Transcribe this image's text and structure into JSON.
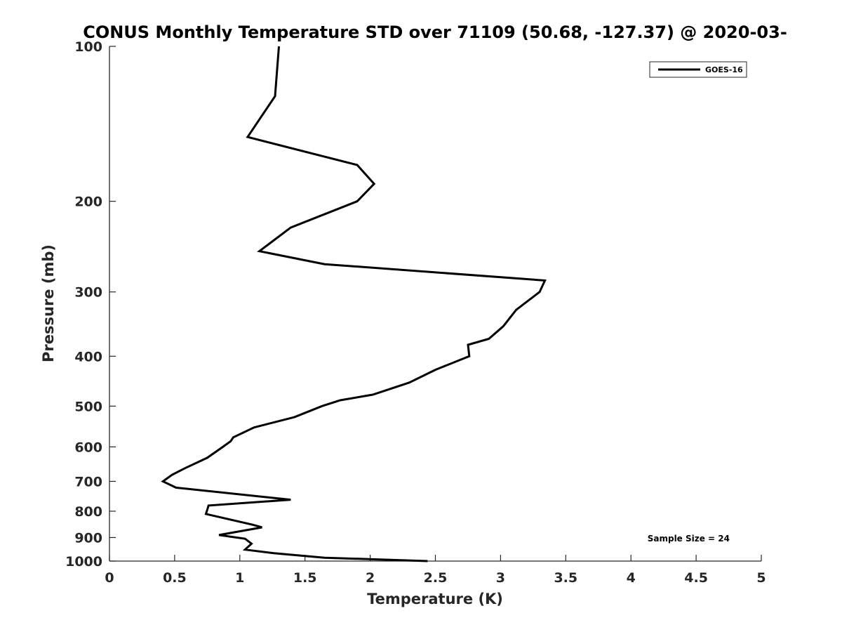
{
  "chart_data": {
    "type": "line",
    "title": "CONUS Monthly Temperature STD over 71109 (50.68, -127.37) @ 2020-03-",
    "xlabel": "Temperature (K)",
    "ylabel": "Pressure (mb)",
    "xlim": [
      0,
      5
    ],
    "ylim": [
      1000,
      100
    ],
    "y_scale": "log",
    "x_ticks": [
      "0",
      "0.5",
      "1",
      "1.5",
      "2",
      "2.5",
      "3",
      "3.5",
      "4",
      "4.5",
      "5"
    ],
    "y_ticks": [
      "100",
      "200",
      "300",
      "400",
      "500",
      "600",
      "700",
      "800",
      "900",
      "1000"
    ],
    "grid": false,
    "legend": {
      "position": "top-right",
      "entries": [
        "GOES-16"
      ]
    },
    "annotation": "Sample Size = 24",
    "series": [
      {
        "name": "GOES-16",
        "color": "#000000",
        "x": [
          1.3,
          1.27,
          1.06,
          1.9,
          2.03,
          1.9,
          1.39,
          1.15,
          1.65,
          3.34,
          3.3,
          3.12,
          3.02,
          2.91,
          2.75,
          2.76,
          2.5,
          2.3,
          2.02,
          1.77,
          1.63,
          1.42,
          1.11,
          0.95,
          0.93,
          0.87,
          0.75,
          0.58,
          0.48,
          0.41,
          0.51,
          1.39,
          0.76,
          0.74,
          1.1,
          1.17,
          0.84,
          1.04,
          1.09,
          1.04,
          1.26,
          1.65,
          2.44
        ],
        "y": [
          100,
          125,
          150,
          170,
          185,
          200,
          225,
          250,
          265,
          285,
          300,
          325,
          350,
          370,
          380,
          400,
          425,
          450,
          475,
          487,
          500,
          525,
          550,
          575,
          585,
          600,
          630,
          660,
          680,
          700,
          720,
          760,
          780,
          810,
          850,
          860,
          890,
          905,
          925,
          950,
          965,
          985,
          1000
        ]
      }
    ]
  }
}
